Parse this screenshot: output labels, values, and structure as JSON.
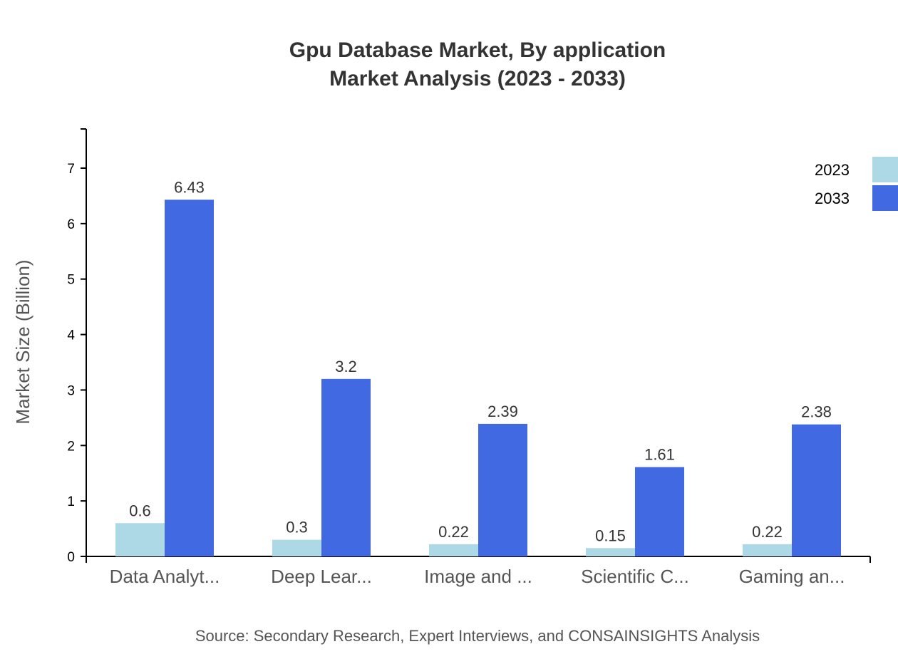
{
  "chart_data": {
    "type": "bar",
    "title": "Gpu Database Market, By application",
    "subtitle": "Market Analysis (2023 - 2033)",
    "xlabel": "",
    "ylabel": "Market Size (Billion)",
    "ylim": [
      0,
      7.7
    ],
    "yticks": [
      0,
      1,
      2,
      3,
      4,
      5,
      6,
      7
    ],
    "grid": false,
    "legend_placement": "top-right",
    "categories": [
      "Data Analyt...",
      "Deep Lear...",
      "Image and ...",
      "Scientific C...",
      "Gaming an..."
    ],
    "series": [
      {
        "name": "2023",
        "color": "#add8e6",
        "values": [
          0.6,
          0.3,
          0.22,
          0.15,
          0.22
        ]
      },
      {
        "name": "2033",
        "color": "#4169e1",
        "values": [
          6.43,
          3.2,
          2.39,
          1.61,
          2.38
        ]
      }
    ],
    "source": "Source: Secondary Research, Expert Interviews, and CONSAINSIGHTS Analysis"
  }
}
